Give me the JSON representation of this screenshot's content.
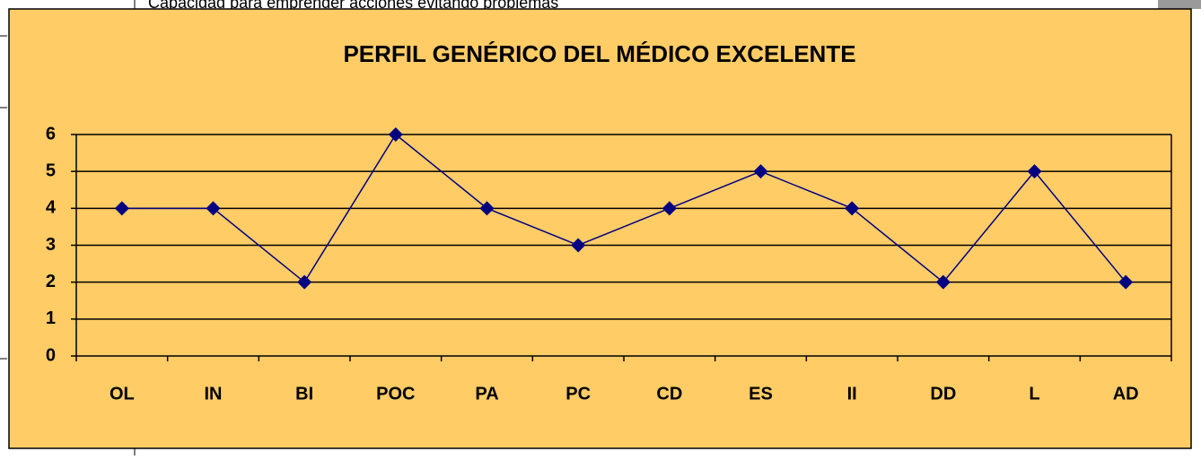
{
  "background_text": "Capacidad para emprender acciones evitando problemas",
  "chart_data": {
    "type": "line",
    "title": "PERFIL GENÉRICO DEL MÉDICO  EXCELENTE",
    "categories": [
      "OL",
      "IN",
      "BI",
      "POC",
      "PA",
      "PC",
      "CD",
      "ES",
      "II",
      "DD",
      "L",
      "AD"
    ],
    "values": [
      4,
      4,
      2,
      6,
      4,
      3,
      4,
      5,
      4,
      2,
      5,
      2
    ],
    "color": "#000080",
    "ylim": [
      0,
      6
    ],
    "yticks": [
      0,
      1,
      2,
      3,
      4,
      5,
      6
    ],
    "grid": true
  }
}
